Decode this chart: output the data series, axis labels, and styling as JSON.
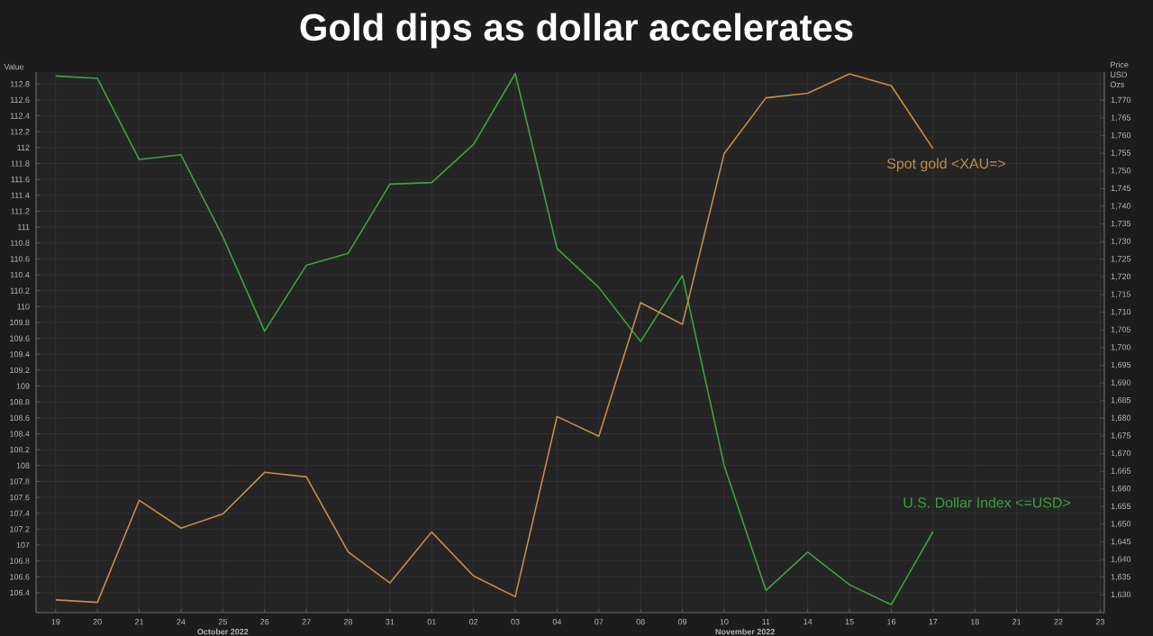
{
  "chart_data": {
    "type": "line",
    "title": "Gold dips as dollar accelerates",
    "ylabel": "Value",
    "y2label": "Price USD Ozs",
    "categories": [
      "19",
      "20",
      "21",
      "24",
      "25",
      "26",
      "27",
      "28",
      "31",
      "01",
      "02",
      "03",
      "04",
      "07",
      "08",
      "09",
      "10",
      "11",
      "14",
      "15",
      "16",
      "17",
      "18",
      "21",
      "22",
      "23"
    ],
    "series": [
      {
        "name": "U.S. Dollar Index <=USD>",
        "color": "#3aa53a",
        "axis": "y",
        "values": [
          112.9,
          112.87,
          111.85,
          111.91,
          110.88,
          109.69,
          110.52,
          110.67,
          111.54,
          111.56,
          112.04,
          112.93,
          110.73,
          110.24,
          109.56,
          110.39,
          108.0,
          106.43,
          106.91,
          106.5,
          106.25,
          107.17,
          null,
          null,
          null,
          null
        ]
      },
      {
        "name": "Spot gold <XAU=>",
        "color": "#c48d48",
        "axis": "y2",
        "values": [
          1628.6,
          1627.9,
          1656.8,
          1648.9,
          1652.9,
          1664.7,
          1663.4,
          1642.2,
          1633.4,
          1647.8,
          1635.4,
          1629.5,
          1680.5,
          1674.9,
          1712.7,
          1706.6,
          1754.9,
          1770.7,
          1772.0,
          1777.5,
          1774.1,
          1756.3,
          null,
          null,
          null,
          null
        ]
      }
    ],
    "ylim": [
      106.15,
      112.95
    ],
    "yticks": [
      106.4,
      106.6,
      106.8,
      107,
      107.2,
      107.4,
      107.6,
      107.8,
      108,
      108.2,
      108.4,
      108.6,
      108.8,
      109,
      109.2,
      109.4,
      109.6,
      109.8,
      110,
      110.2,
      110.4,
      110.6,
      110.8,
      111,
      111.2,
      111.4,
      111.6,
      111.8,
      112,
      112.2,
      112.4,
      112.6,
      112.8
    ],
    "y2lim": [
      1625,
      1778
    ],
    "y2ticks": [
      {
        "value": 1630,
        "label": "1,630"
      },
      {
        "value": 1635,
        "label": "1,635"
      },
      {
        "value": 1640,
        "label": "1,640"
      },
      {
        "value": 1645,
        "label": "1,645"
      },
      {
        "value": 1650,
        "label": "1,650"
      },
      {
        "value": 1655,
        "label": "1,655"
      },
      {
        "value": 1660,
        "label": "1,660"
      },
      {
        "value": 1665,
        "label": "1,665"
      },
      {
        "value": 1670,
        "label": "1,670"
      },
      {
        "value": 1675,
        "label": "1,675"
      },
      {
        "value": 1680,
        "label": "1,680"
      },
      {
        "value": 1685,
        "label": "1,685"
      },
      {
        "value": 1690,
        "label": "1,690"
      },
      {
        "value": 1695,
        "label": "1,695"
      },
      {
        "value": 1700,
        "label": "1,700"
      },
      {
        "value": 1705,
        "label": "1,705"
      },
      {
        "value": 1710,
        "label": "1,710"
      },
      {
        "value": 1715,
        "label": "1,715"
      },
      {
        "value": 1720,
        "label": "1,720"
      },
      {
        "value": 1725,
        "label": "1,725"
      },
      {
        "value": 1730,
        "label": "1,730"
      },
      {
        "value": 1735,
        "label": "1,735"
      },
      {
        "value": 1740,
        "label": "1,740"
      },
      {
        "value": 1745,
        "label": "1,745"
      },
      {
        "value": 1750,
        "label": "1,750"
      },
      {
        "value": 1755,
        "label": "1,755"
      },
      {
        "value": 1760,
        "label": "1,760"
      },
      {
        "value": 1765,
        "label": "1,765"
      },
      {
        "value": 1770,
        "label": "1,770"
      }
    ],
    "annotations": [
      "October 2022",
      "November 2022"
    ],
    "grid": true,
    "marker": "none",
    "line_style": "solid"
  }
}
